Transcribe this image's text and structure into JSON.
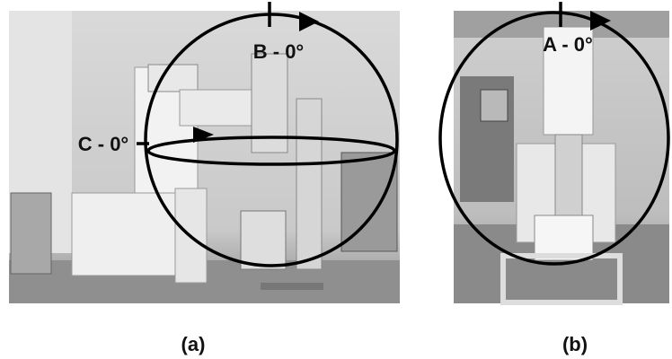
{
  "panels": [
    {
      "caption": "(a)",
      "annotations": [
        "B - 0°",
        "C - 0°"
      ]
    },
    {
      "caption": "(b)",
      "annotations": [
        "A - 0°"
      ]
    }
  ]
}
